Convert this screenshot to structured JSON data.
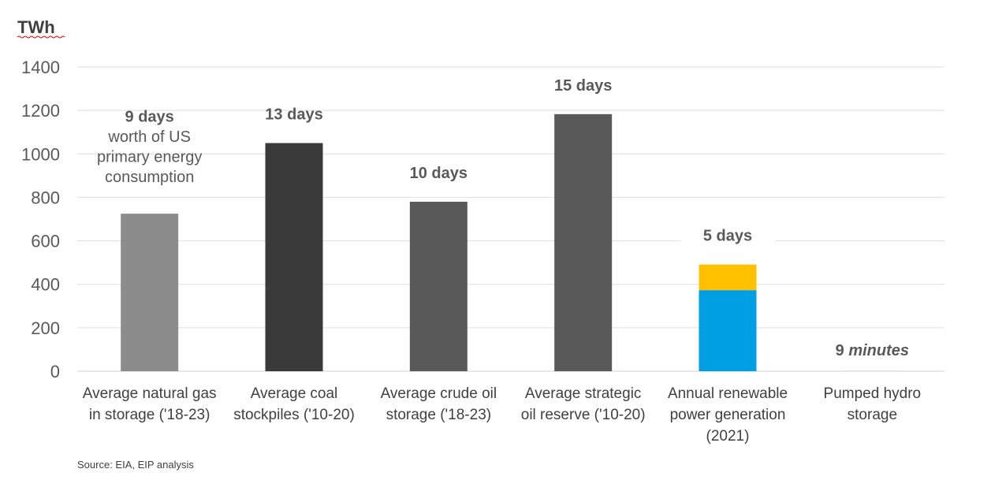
{
  "chart_data": {
    "type": "bar",
    "ylabel": "TWh",
    "ylim": [
      0,
      1400
    ],
    "yticks": [
      0,
      200,
      400,
      600,
      800,
      1000,
      1200,
      1400
    ],
    "grid": true,
    "categories": [
      [
        "Average natural gas",
        "in storage ('18-23)"
      ],
      [
        "Average coal",
        "stockpiles ('10-20)"
      ],
      [
        "Average crude oil",
        "storage ('18-23)"
      ],
      [
        "Average strategic",
        "oil reserve ('10-20)"
      ],
      [
        "Annual renewable",
        "power generation",
        "(2021)"
      ],
      [
        "Pumped hydro",
        "storage"
      ]
    ],
    "bars": [
      {
        "segments": [
          {
            "value": 725,
            "color": "#8c8c8c"
          }
        ],
        "annotation": [
          "9 days"
        ],
        "annotation_sub": [
          "worth of US",
          "primary energy",
          "consumption"
        ],
        "italic_part": ""
      },
      {
        "segments": [
          {
            "value": 1050,
            "color": "#3a3a3a"
          }
        ],
        "annotation": [
          "13 days"
        ],
        "annotation_sub": [],
        "italic_part": ""
      },
      {
        "segments": [
          {
            "value": 780,
            "color": "#595959"
          }
        ],
        "annotation": [
          "10 days"
        ],
        "annotation_sub": [],
        "italic_part": ""
      },
      {
        "segments": [
          {
            "value": 1183,
            "color": "#595959"
          }
        ],
        "annotation": [
          "15 days"
        ],
        "annotation_sub": [],
        "italic_part": ""
      },
      {
        "segments": [
          {
            "value": 373,
            "color": "#009fe3"
          },
          {
            "value": 118,
            "color": "#ffc000"
          }
        ],
        "annotation": [
          "5 days"
        ],
        "annotation_sub": [],
        "italic_part": ""
      },
      {
        "segments": [
          {
            "value": 0.3,
            "color": "#595959"
          }
        ],
        "annotation": [
          "9"
        ],
        "annotation_sub": [],
        "italic_part": "minutes"
      }
    ],
    "source": "Source: EIA, EIP analysis"
  }
}
